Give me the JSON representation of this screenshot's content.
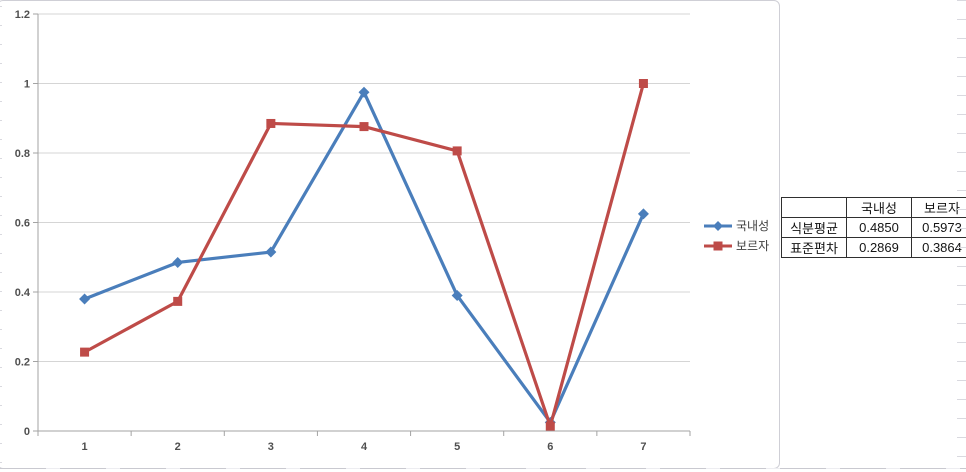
{
  "chart_data": {
    "type": "line",
    "categories": [
      "1",
      "2",
      "3",
      "4",
      "5",
      "6",
      "7"
    ],
    "x": [
      1,
      2,
      3,
      4,
      5,
      6,
      7
    ],
    "series": [
      {
        "name": "국내성",
        "color": "#4a7ebb",
        "marker": "diamond",
        "values": [
          0.38,
          0.485,
          0.515,
          0.975,
          0.39,
          0.025,
          0.625
        ]
      },
      {
        "name": "보르자",
        "color": "#be4b48",
        "marker": "square",
        "values": [
          0.227,
          0.373,
          0.885,
          0.876,
          0.806,
          0.014,
          1.0
        ]
      }
    ],
    "title": "",
    "xlabel": "",
    "ylabel": "",
    "ylim": [
      0,
      1.2
    ],
    "ytick_step": 0.2,
    "ytick_labels": [
      "1.2",
      "1",
      "0.8",
      "0.6",
      "0.4",
      "0.2",
      "0"
    ],
    "grid": true,
    "legend_position": "right-middle",
    "colors": {
      "grid": "#d5d5d5",
      "axis": "#a3a3a3",
      "tick_label": "#4f4f4f"
    }
  },
  "legend": {
    "items": [
      {
        "label": "국내성",
        "marker": "diamond"
      },
      {
        "label": "보르자",
        "marker": "square"
      }
    ]
  },
  "stats_table": {
    "col_headers": [
      "",
      "국내성",
      "보르자"
    ],
    "rows": [
      {
        "label": "식분평균",
        "values": [
          "0.4850",
          "0.5973"
        ]
      },
      {
        "label": "표준편차",
        "values": [
          "0.2869",
          "0.3864"
        ]
      }
    ]
  }
}
